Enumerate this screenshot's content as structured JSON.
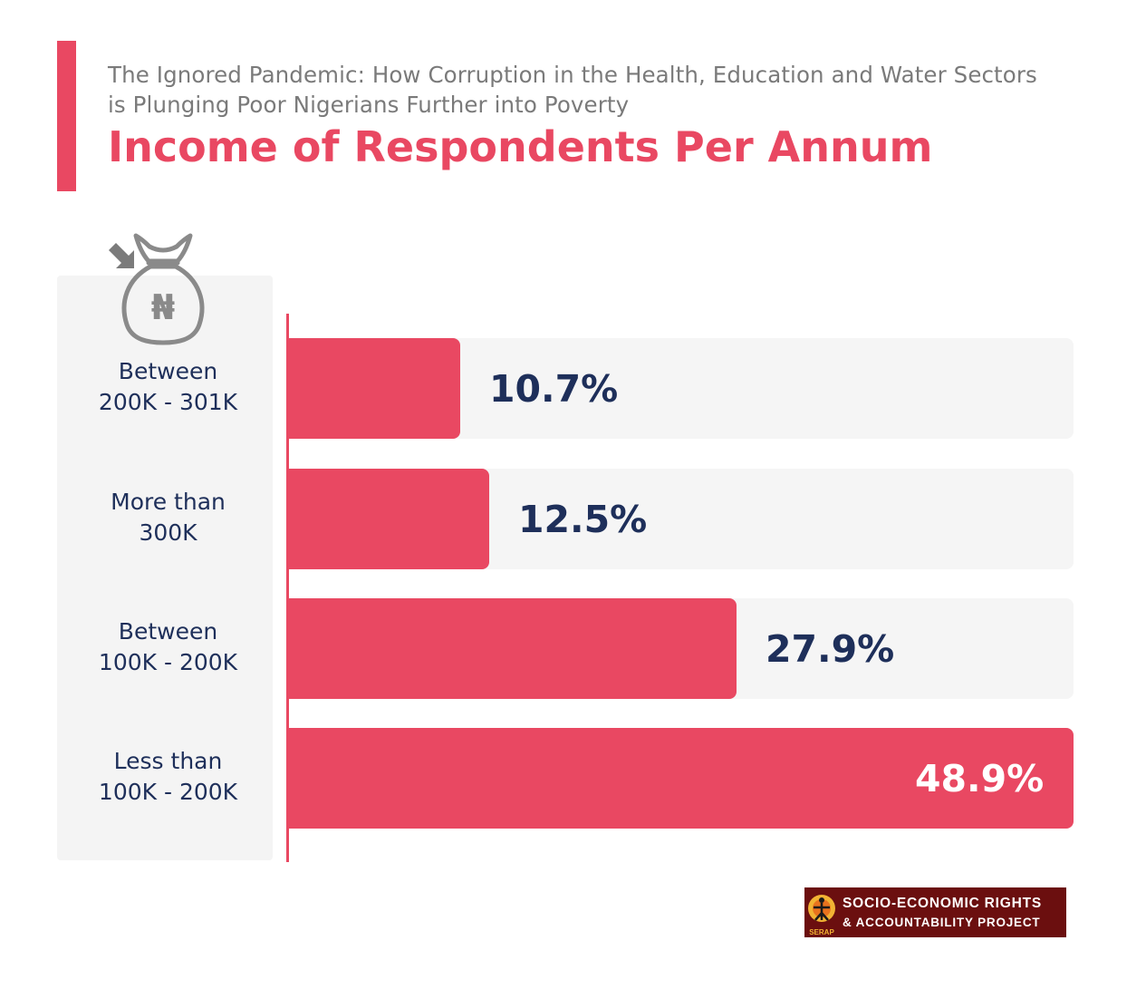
{
  "header": {
    "subtitle_line1": "The Ignored Pandemic: How Corruption in the Health, Education and Water Sectors",
    "subtitle_line2": "is Plunging Poor Nigerians Further into Poverty",
    "title": "Income of Respondents Per Annum"
  },
  "icons": {
    "money_bag": "money-bag-naira-icon",
    "arrow": "arrow-down-right-icon",
    "currency_symbol": "₦"
  },
  "colors": {
    "accent": "#e94862",
    "label_text": "#1e2f5a",
    "track": "#f5f5f5",
    "logo_bg": "#6b0f0f"
  },
  "chart_data": {
    "type": "bar",
    "orientation": "horizontal",
    "title": "Income of Respondents Per Annum",
    "categories": [
      [
        "Between",
        "200K - 301K"
      ],
      [
        "More than",
        "300K"
      ],
      [
        "Between",
        "100K - 200K"
      ],
      [
        "Less than",
        "100K - 200K"
      ]
    ],
    "values": [
      10.7,
      12.5,
      27.9,
      48.9
    ],
    "value_labels": [
      "10.7%",
      "12.5%",
      "27.9%",
      "48.9%"
    ],
    "unit": "%",
    "xlim": [
      0,
      48.9
    ],
    "grid": false,
    "legend": "none"
  },
  "footer": {
    "logo_line1": "SOCIO-ECONOMIC RIGHTS",
    "logo_line2": "& ACCOUNTABILITY PROJECT",
    "logo_mark_text": "SERAP"
  }
}
